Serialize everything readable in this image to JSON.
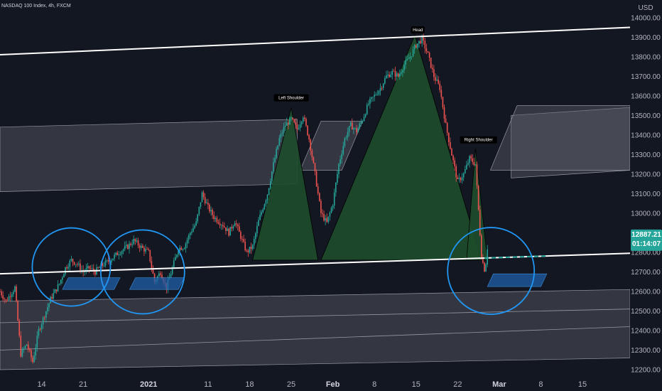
{
  "chart_data": {
    "type": "candlestick",
    "title": "NASDAQ 100 Index, 4h, FXCM",
    "currency": "USD",
    "y_ticks": [
      12200,
      12300,
      12400,
      12500,
      12600,
      12700,
      12800,
      12900,
      13000,
      13100,
      13200,
      13300,
      13400,
      13500,
      13600,
      13700,
      13800,
      13900,
      14000
    ],
    "ylim": [
      12160,
      14090
    ],
    "x_ticks": [
      {
        "label": "14",
        "day": 14,
        "bold": false
      },
      {
        "label": "21",
        "day": 21,
        "bold": false
      },
      {
        "label": "2021",
        "day": 32,
        "bold": true
      },
      {
        "label": "11",
        "day": 42,
        "bold": false
      },
      {
        "label": "18",
        "day": 49,
        "bold": false
      },
      {
        "label": "25",
        "day": 56,
        "bold": false
      },
      {
        "label": "Feb",
        "day": 63,
        "bold": true
      },
      {
        "label": "8",
        "day": 70,
        "bold": false
      },
      {
        "label": "15",
        "day": 77,
        "bold": false
      },
      {
        "label": "22",
        "day": 84,
        "bold": false
      },
      {
        "label": "Mar",
        "day": 91,
        "bold": true
      },
      {
        "label": "8",
        "day": 98,
        "bold": false
      },
      {
        "label": "15",
        "day": 105,
        "bold": false
      }
    ],
    "xlim": [
      7,
      113
    ],
    "last_price": "12887.21",
    "countdown": "01:14:07",
    "price_path": [
      [
        7,
        12600
      ],
      [
        8,
        12550
      ],
      [
        9.5,
        12620
      ],
      [
        10.5,
        12280
      ],
      [
        11.5,
        12330
      ],
      [
        12.5,
        12240
      ],
      [
        13.5,
        12400
      ],
      [
        14.5,
        12480
      ],
      [
        15.5,
        12560
      ],
      [
        17,
        12640
      ],
      [
        18,
        12720
      ],
      [
        19,
        12760
      ],
      [
        20,
        12740
      ],
      [
        21,
        12700
      ],
      [
        22,
        12720
      ],
      [
        23,
        12700
      ],
      [
        24,
        12730
      ],
      [
        25.5,
        12760
      ],
      [
        27,
        12800
      ],
      [
        28.5,
        12830
      ],
      [
        29.5,
        12860
      ],
      [
        31,
        12820
      ],
      [
        32,
        12800
      ],
      [
        33,
        12650
      ],
      [
        34,
        12700
      ],
      [
        35,
        12620
      ],
      [
        36,
        12720
      ],
      [
        37,
        12820
      ],
      [
        38,
        12830
      ],
      [
        39,
        12900
      ],
      [
        40,
        12950
      ],
      [
        41,
        13100
      ],
      [
        42,
        13030
      ],
      [
        43,
        12980
      ],
      [
        44.5,
        12940
      ],
      [
        45.5,
        12900
      ],
      [
        46.5,
        12960
      ],
      [
        47.5,
        12880
      ],
      [
        48.5,
        12800
      ],
      [
        49.5,
        12830
      ],
      [
        50.5,
        12960
      ],
      [
        52,
        13100
      ],
      [
        53,
        13250
      ],
      [
        54,
        13380
      ],
      [
        55,
        13450
      ],
      [
        56,
        13480
      ],
      [
        57,
        13430
      ],
      [
        58,
        13500
      ],
      [
        59,
        13380
      ],
      [
        60,
        13200
      ],
      [
        61,
        13000
      ],
      [
        62,
        12950
      ],
      [
        63,
        13050
      ],
      [
        64,
        13250
      ],
      [
        65,
        13380
      ],
      [
        66,
        13450
      ],
      [
        67,
        13420
      ],
      [
        68,
        13480
      ],
      [
        69,
        13560
      ],
      [
        70,
        13600
      ],
      [
        71,
        13640
      ],
      [
        72,
        13700
      ],
      [
        73,
        13720
      ],
      [
        74,
        13700
      ],
      [
        75,
        13760
      ],
      [
        76,
        13800
      ],
      [
        77,
        13860
      ],
      [
        78,
        13890
      ],
      [
        79,
        13810
      ],
      [
        80,
        13700
      ],
      [
        81,
        13640
      ],
      [
        82,
        13450
      ],
      [
        83,
        13300
      ],
      [
        84,
        13160
      ],
      [
        85,
        13200
      ],
      [
        86,
        13280
      ],
      [
        87,
        13250
      ],
      [
        88,
        12780
      ],
      [
        88.6,
        12700
      ],
      [
        89.2,
        12887
      ]
    ],
    "channel_upper": {
      "x1": 7,
      "y1": 13810,
      "x2": 113,
      "y2": 13950
    },
    "channel_neck": {
      "x1": 7,
      "y1": 12690,
      "x2": 113,
      "y2": 12795
    },
    "neck_extension_dashed": {
      "x1": 88.5,
      "x2": 99
    },
    "bands": [
      {
        "x1": 7,
        "x2": 57,
        "y_top1": 13440,
        "y_bot1": 13110,
        "y_top2": 13480,
        "y_bot2": 13150
      },
      {
        "x1": 7,
        "x2": 113,
        "y_top1": 12550,
        "y_bot1": 12200,
        "y_top2": 12610,
        "y_bot2": 12260
      },
      {
        "x1": 93,
        "x2": 113,
        "y_top1": 13500,
        "y_bot1": 13180,
        "y_top2": 13540,
        "y_bot2": 13220
      }
    ],
    "inner_lines": [
      {
        "x1": 7,
        "y1": 12440,
        "x2": 113,
        "y2": 12510
      },
      {
        "x1": 7,
        "y1": 12300,
        "x2": 113,
        "y2": 12420
      }
    ],
    "slanted_boxes": [
      {
        "corners": [
          [
            57.5,
            13220
          ],
          [
            61,
            13470
          ],
          [
            68,
            13470
          ],
          [
            64.5,
            13220
          ]
        ]
      },
      {
        "corners": [
          [
            89.5,
            13220
          ],
          [
            94,
            13550
          ],
          [
            113,
            13550
          ],
          [
            113,
            13220
          ]
        ]
      }
    ],
    "hs_triangles": [
      {
        "name": "Left Shoulder",
        "points": [
          [
            49.5,
            12760
          ],
          [
            56,
            13540
          ],
          [
            60.5,
            12760
          ]
        ]
      },
      {
        "name": "Head",
        "points": [
          [
            61,
            12760
          ],
          [
            76.8,
            13910
          ],
          [
            88,
            12760
          ]
        ]
      },
      {
        "name": "Right Shoulder",
        "points": [
          [
            85.5,
            12760
          ],
          [
            87,
            13330
          ],
          [
            89,
            12760
          ]
        ]
      }
    ],
    "annotations": [
      {
        "text": "Left Shoulder",
        "x": 56,
        "y": 13590
      },
      {
        "text": "Head",
        "x": 77.3,
        "y": 13937
      },
      {
        "text": "Right Shoulder",
        "x": 87.5,
        "y": 13375
      }
    ],
    "circles": [
      {
        "cx": 19,
        "cy": 12725,
        "r": 55
      },
      {
        "cx": 31,
        "cy": 12700,
        "r": 59
      },
      {
        "cx": 89.6,
        "cy": 12705,
        "r": 61
      }
    ],
    "blue_rects": [
      {
        "corners": [
          [
            17.5,
            12610
          ],
          [
            18.5,
            12670
          ],
          [
            27.2,
            12670
          ],
          [
            26.2,
            12610
          ]
        ]
      },
      {
        "corners": [
          [
            28.8,
            12610
          ],
          [
            29.8,
            12670
          ],
          [
            38,
            12670
          ],
          [
            37,
            12610
          ]
        ]
      },
      {
        "corners": [
          [
            89,
            12625
          ],
          [
            90,
            12690
          ],
          [
            99,
            12690
          ],
          [
            98,
            12625
          ]
        ]
      }
    ],
    "colors": {
      "background": "#131722",
      "up": "#26a69a",
      "down": "#ef5350",
      "triangle_fill": "#1e4d2b",
      "circle": "#2196f3",
      "blue_box": "#1f5fa8",
      "channel_line": "#ffffff",
      "band_fill": "#5d606b",
      "last_price_bg": "#26a69a"
    }
  }
}
